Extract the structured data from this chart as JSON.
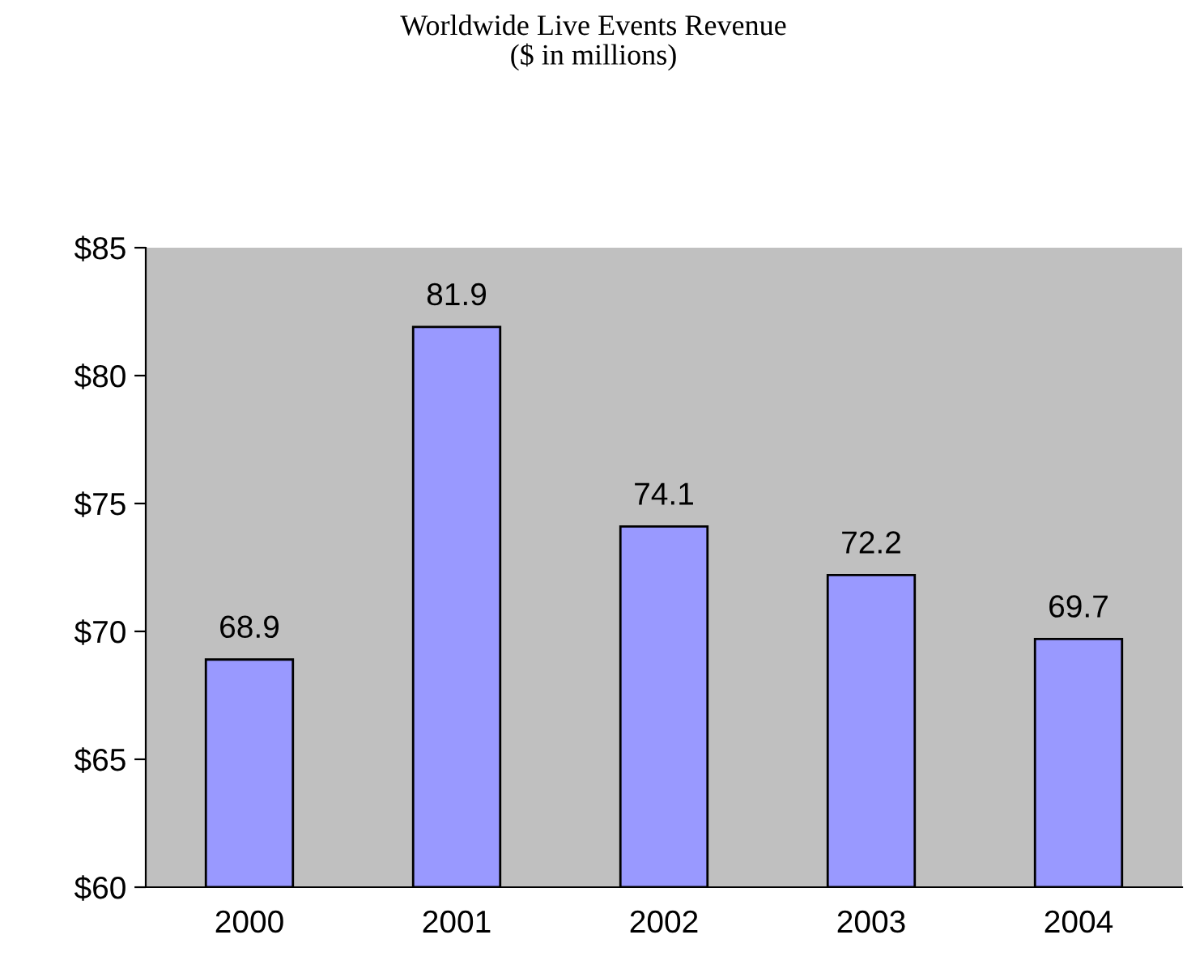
{
  "chart_data": {
    "type": "bar",
    "title": "Worldwide Live Events Revenue\n($ in millions)",
    "categories": [
      "2000",
      "2001",
      "2002",
      "2003",
      "2004"
    ],
    "values": [
      68.9,
      81.9,
      74.1,
      72.2,
      69.7
    ],
    "color": "#9999ff",
    "ylim": [
      60,
      85
    ],
    "yticks": [
      {
        "value": 60,
        "label": "$60"
      },
      {
        "value": 65,
        "label": "$65"
      },
      {
        "value": 70,
        "label": "$70"
      },
      {
        "value": 75,
        "label": "$75"
      },
      {
        "value": 80,
        "label": "$80"
      },
      {
        "value": 85,
        "label": "$85"
      }
    ],
    "data_labels": true,
    "grid": false,
    "legend": false
  }
}
